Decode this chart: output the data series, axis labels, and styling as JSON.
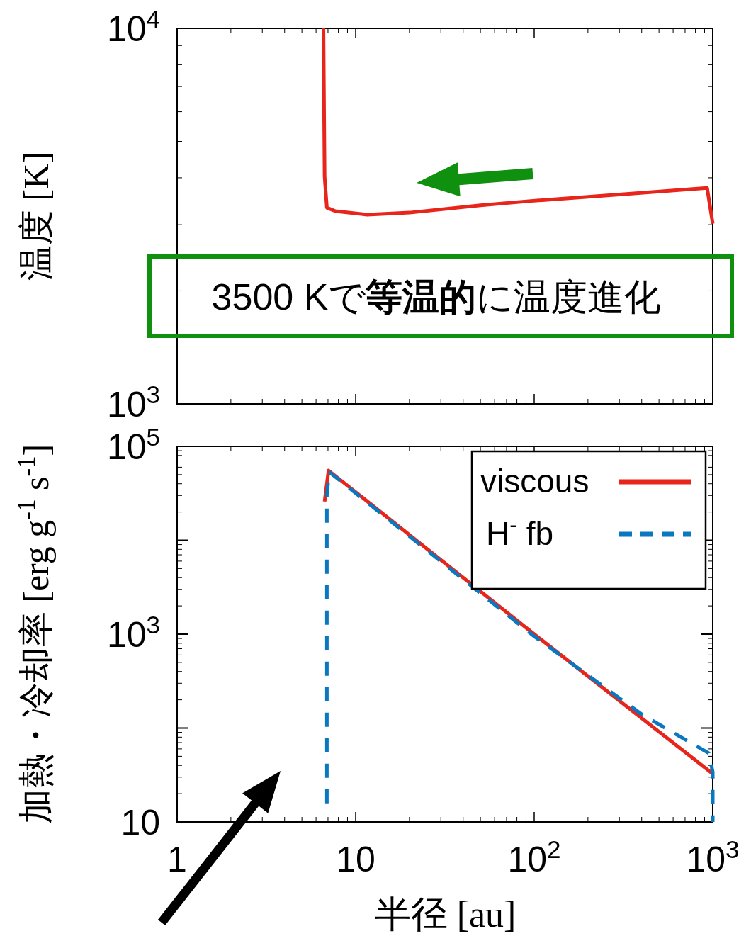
{
  "chart_data": [
    {
      "type": "line",
      "ylabel": "温度 [K]",
      "xlim": [
        1,
        1000
      ],
      "ylim": [
        1000,
        10000
      ],
      "log": "xy",
      "tick_labels": "y",
      "xticks": [
        {
          "value": 1,
          "label": null
        },
        {
          "value": 10,
          "label": null
        },
        {
          "value": 100,
          "label": null
        },
        {
          "value": 1000,
          "label": null
        }
      ],
      "yticks": [
        {
          "value": 1000,
          "label": "10$^{3}$"
        },
        {
          "value": 10000,
          "label": "10$^{4}$"
        }
      ],
      "series": [
        {
          "color": "#e8251b",
          "line_style": "solid",
          "x": [
            6.6,
            6.7,
            6.9,
            7.7,
            11.6,
            20,
            50,
            96,
            300,
            930,
            1000
          ],
          "values": [
            10000,
            4030,
            3330,
            3260,
            3190,
            3230,
            3380,
            3470,
            3610,
            3760,
            3020
          ]
        }
      ],
      "annotations": [
        "3500 Kで**等温的**に温度進化"
      ]
    },
    {
      "type": "line",
      "xlabel": "半径 [au]",
      "ylabel": "加熱・冷却率 [erg g$^{-1}$ s$^{-1}$]",
      "xlim": [
        1,
        1000
      ],
      "ylim": [
        10,
        100000
      ],
      "log": "xy",
      "legend": "top right",
      "xticks": [
        {
          "value": 1,
          "label": "1"
        },
        {
          "value": 10,
          "label": "10"
        },
        {
          "value": 100,
          "label": "10$^{2}$"
        },
        {
          "value": 1000,
          "label": "10$^{3}$"
        }
      ],
      "yticks": [
        {
          "value": 10,
          "label": "10"
        },
        {
          "value": 100,
          "label": null
        },
        {
          "value": 1000,
          "label": "10$^{3}$"
        },
        {
          "value": 10000,
          "label": null
        },
        {
          "value": 100000,
          "label": "10$^{5}$"
        }
      ],
      "series": [
        {
          "name": "viscous",
          "color": "#e8251b",
          "line_style": "solid",
          "x": [
            6.7,
            7.05,
            100,
            1000
          ],
          "values": [
            25900,
            55300,
            1000,
            32.6
          ]
        },
        {
          "name": "H$^{-}$ fb",
          "color": "#0a78c0",
          "line_style": "dashed",
          "x": [
            6.9,
            6.9,
            7.1,
            100,
            400,
            950,
            1000,
            1000
          ],
          "values": [
            15.8,
            30000,
            53500,
            950,
            140,
            54,
            34,
            10
          ]
        }
      ]
    }
  ]
}
